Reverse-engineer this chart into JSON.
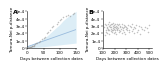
{
  "panel_A": {
    "label": "A",
    "xlabel": "Days between collection dates",
    "ylabel": "Tamura-Nei p-distance",
    "xlim": [
      0,
      150
    ],
    "ylim": [
      0,
      0.0005
    ],
    "xticks": [
      0,
      50,
      100,
      150
    ],
    "yticks": [
      0,
      0.0001,
      0.0002,
      0.0003,
      0.0004,
      0.0005
    ],
    "ytick_labels": [
      "0",
      "1e-4",
      "2e-4",
      "3e-4",
      "4e-4",
      "5e-4"
    ],
    "scatter_x": [
      3,
      5,
      7,
      8,
      10,
      12,
      14,
      15,
      18,
      20,
      22,
      25,
      28,
      30,
      35,
      40,
      45,
      50,
      55,
      60,
      65,
      70,
      75,
      80,
      90,
      95,
      100,
      105,
      110,
      120,
      125,
      130,
      140,
      145
    ],
    "scatter_y": [
      5e-06,
      1e-05,
      8e-06,
      1.2e-05,
      1.5e-05,
      1.8e-05,
      2e-05,
      2.5e-05,
      3e-05,
      3.2e-05,
      2.8e-05,
      5e-05,
      6e-05,
      7e-05,
      8e-05,
      9e-05,
      0.00012,
      0.00013,
      0.00015,
      0.0002,
      0.00022,
      0.00025,
      0.00028,
      0.0003,
      0.00032,
      0.00035,
      0.00038,
      0.0004,
      0.00042,
      0.00043,
      0.00045,
      0.00044,
      0.00046,
      0.00048
    ],
    "ci_x": [
      0,
      10,
      20,
      30,
      40,
      50,
      60,
      70,
      80,
      90,
      100,
      110,
      120,
      130,
      140,
      150
    ],
    "ci_lower": [
      0,
      2e-06,
      5e-06,
      8e-06,
      1e-05,
      1.5e-05,
      2e-05,
      2.5e-05,
      3e-05,
      3.5e-05,
      4e-05,
      4.5e-05,
      5e-05,
      5.5e-05,
      6e-05,
      6.5e-05
    ],
    "ci_upper": [
      3e-05,
      4e-05,
      6e-05,
      8e-05,
      0.0001,
      0.00013,
      0.00016,
      0.0002,
      0.00024,
      0.00028,
      0.00032,
      0.00037,
      0.00041,
      0.00044,
      0.00047,
      0.0005
    ],
    "line_x": [
      0,
      150
    ],
    "line_y": [
      1.5e-05,
      0.00025
    ],
    "line_color": "#99bbdd",
    "ci_color": "#bbddee",
    "marker_color": "#999999",
    "marker_size": 1.2,
    "marker_alpha": 0.6
  },
  "panel_B": {
    "label": "B",
    "xlabel": "Days between collection dates",
    "ylabel": "Tamura-Nei p-distance",
    "xlim": [
      100,
      520
    ],
    "ylim": [
      0,
      0.0005
    ],
    "xticks": [
      100,
      200,
      300,
      400,
      500
    ],
    "yticks": [
      0,
      0.0001,
      0.0002,
      0.0003,
      0.0004,
      0.0005
    ],
    "ytick_labels": [
      "0",
      "1e-4",
      "2e-4",
      "3e-4",
      "4e-4",
      "5e-4"
    ],
    "scatter_x": [
      112,
      118,
      122,
      128,
      133,
      137,
      142,
      146,
      150,
      153,
      156,
      160,
      163,
      167,
      170,
      173,
      176,
      179,
      182,
      185,
      188,
      191,
      194,
      197,
      200,
      203,
      206,
      210,
      213,
      217,
      220,
      224,
      228,
      232,
      236,
      240,
      245,
      250,
      255,
      260,
      265,
      270,
      275,
      280,
      285,
      290,
      295,
      300,
      308,
      315,
      322,
      330,
      338,
      346,
      355,
      365,
      375,
      386,
      398,
      410,
      425,
      440,
      458,
      478,
      500,
      115,
      125,
      135,
      145,
      155,
      165,
      175,
      185,
      195,
      205,
      215,
      225,
      235,
      248,
      262,
      277,
      293,
      310,
      328,
      348,
      370,
      395,
      420,
      450,
      485
    ],
    "scatter_y": [
      0.00028,
      0.00032,
      0.00025,
      0.00031,
      0.00027,
      0.00029,
      0.00033,
      0.00026,
      0.0003,
      0.00035,
      0.00024,
      0.00031,
      0.00028,
      0.00033,
      0.00026,
      0.00029,
      0.00032,
      0.00025,
      0.0003,
      0.00027,
      0.00034,
      0.00028,
      0.00031,
      0.00026,
      0.00029,
      0.00033,
      0.00025,
      0.0003,
      0.00027,
      0.00032,
      0.00026,
      0.00029,
      0.00031,
      0.00027,
      0.00025,
      0.00033,
      0.00028,
      0.0003,
      0.00026,
      0.00029,
      0.00032,
      0.00027,
      0.00025,
      0.00031,
      0.00028,
      0.0003,
      0.00026,
      0.00029,
      0.00027,
      0.00031,
      0.00025,
      0.0003,
      0.00028,
      0.00032,
      0.00026,
      0.00029,
      0.00027,
      0.00031,
      0.00025,
      0.0003,
      0.00028,
      0.00026,
      0.00029,
      0.00027,
      0.00031,
      0.00018,
      0.00022,
      0.0002,
      0.00024,
      0.00019,
      0.00023,
      0.00021,
      0.00025,
      0.0002,
      0.00022,
      0.00019,
      0.00024,
      0.00021,
      0.00023,
      0.0002,
      0.00022,
      0.00019,
      0.00024,
      0.00021,
      0.00023,
      0.0002,
      0.00022,
      0.00019,
      0.00024,
      0.00021
    ],
    "marker_color": "#999999",
    "marker_size": 1.2,
    "marker_alpha": 0.6
  },
  "background_color": "#ffffff",
  "font_size": 3.0,
  "label_font_size": 4.5
}
